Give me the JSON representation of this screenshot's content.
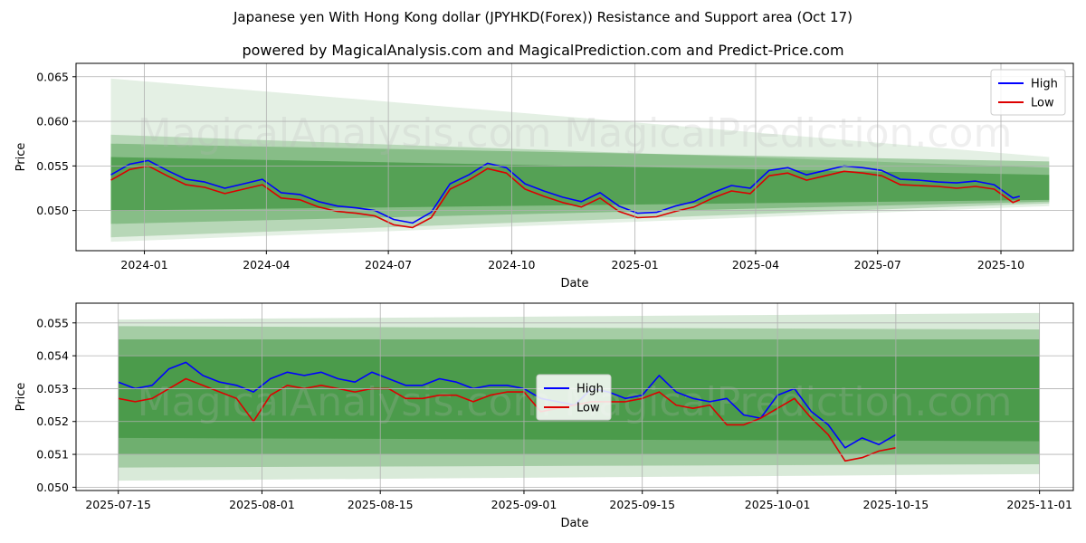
{
  "title": "Japanese yen With Hong Kong dollar (JPYHKD(Forex)) Resistance and Support area (Oct 17)",
  "subtitle": "powered by MagicalAnalysis.com and MagicalPrediction.com and Predict-Price.com",
  "watermark": [
    "MagicalAnalysis.com",
    "MagicalPrediction.com"
  ],
  "colors": {
    "high": "#0000ff",
    "low": "#dd0000",
    "band": "#2e8b2e",
    "grid": "#b0b0b0"
  },
  "chart_data": [
    {
      "type": "line",
      "xlabel": "Date",
      "ylabel": "Price",
      "ylim": [
        0.0455,
        0.0665
      ],
      "x_ticks": [
        "2024-01",
        "2024-04",
        "2024-07",
        "2024-10",
        "2025-01",
        "2025-04",
        "2025-07",
        "2025-10"
      ],
      "y_ticks": [
        "0.050",
        "0.055",
        "0.060",
        "0.065"
      ],
      "legend": {
        "position": "top-right",
        "entries": [
          "High",
          "Low"
        ]
      },
      "grid": true,
      "x": [
        "2023-12-07",
        "2023-12-21",
        "2024-01-04",
        "2024-01-18",
        "2024-02-01",
        "2024-02-15",
        "2024-03-01",
        "2024-03-15",
        "2024-03-29",
        "2024-04-12",
        "2024-04-26",
        "2024-05-10",
        "2024-05-24",
        "2024-06-07",
        "2024-06-21",
        "2024-07-05",
        "2024-07-19",
        "2024-08-02",
        "2024-08-16",
        "2024-08-30",
        "2024-09-13",
        "2024-09-27",
        "2024-10-11",
        "2024-10-25",
        "2024-11-08",
        "2024-11-22",
        "2024-12-06",
        "2024-12-20",
        "2025-01-03",
        "2025-01-17",
        "2025-01-31",
        "2025-02-14",
        "2025-02-28",
        "2025-03-14",
        "2025-03-28",
        "2025-04-11",
        "2025-04-25",
        "2025-05-09",
        "2025-05-23",
        "2025-06-06",
        "2025-06-20",
        "2025-07-04",
        "2025-07-18",
        "2025-08-01",
        "2025-08-15",
        "2025-08-29",
        "2025-09-12",
        "2025-09-26",
        "2025-10-10",
        "2025-10-15"
      ],
      "series": [
        {
          "name": "High",
          "values": [
            0.054,
            0.0552,
            0.0556,
            0.0545,
            0.0535,
            0.0532,
            0.0525,
            0.053,
            0.0535,
            0.052,
            0.0518,
            0.051,
            0.0505,
            0.0503,
            0.05,
            0.049,
            0.0486,
            0.0498,
            0.053,
            0.054,
            0.0553,
            0.0548,
            0.053,
            0.0522,
            0.0515,
            0.051,
            0.052,
            0.0505,
            0.0497,
            0.0498,
            0.0505,
            0.051,
            0.052,
            0.0528,
            0.0525,
            0.0545,
            0.0548,
            0.054,
            0.0545,
            0.055,
            0.0548,
            0.0545,
            0.0535,
            0.0534,
            0.0532,
            0.0531,
            0.0533,
            0.0529,
            0.0514,
            0.0516
          ]
        },
        {
          "name": "Low",
          "values": [
            0.0534,
            0.0546,
            0.055,
            0.0539,
            0.0529,
            0.0526,
            0.0519,
            0.0524,
            0.0529,
            0.0514,
            0.0512,
            0.0504,
            0.0499,
            0.0497,
            0.0494,
            0.0484,
            0.0481,
            0.0492,
            0.0524,
            0.0534,
            0.0547,
            0.0542,
            0.0524,
            0.0516,
            0.0509,
            0.0504,
            0.0514,
            0.0499,
            0.0492,
            0.0493,
            0.0499,
            0.0504,
            0.0514,
            0.0522,
            0.0519,
            0.0539,
            0.0542,
            0.0534,
            0.0539,
            0.0544,
            0.0542,
            0.0539,
            0.0529,
            0.0528,
            0.0527,
            0.0525,
            0.0527,
            0.0524,
            0.0509,
            0.0512
          ]
        }
      ]
    },
    {
      "type": "line",
      "xlabel": "Date",
      "ylabel": "Price",
      "ylim": [
        0.0499,
        0.0556
      ],
      "x_ticks": [
        "2025-07-15",
        "2025-08-01",
        "2025-08-15",
        "2025-09-01",
        "2025-09-15",
        "2025-10-01",
        "2025-10-15",
        "2025-11-01"
      ],
      "y_ticks": [
        "0.050",
        "0.051",
        "0.052",
        "0.053",
        "0.054",
        "0.055"
      ],
      "legend": {
        "position": "center",
        "entries": [
          "High",
          "Low"
        ]
      },
      "grid": true,
      "x": [
        "2025-07-15",
        "2025-07-17",
        "2025-07-19",
        "2025-07-21",
        "2025-07-23",
        "2025-07-25",
        "2025-07-27",
        "2025-07-29",
        "2025-07-31",
        "2025-08-02",
        "2025-08-04",
        "2025-08-06",
        "2025-08-08",
        "2025-08-10",
        "2025-08-12",
        "2025-08-14",
        "2025-08-16",
        "2025-08-18",
        "2025-08-20",
        "2025-08-22",
        "2025-08-24",
        "2025-08-26",
        "2025-08-28",
        "2025-08-30",
        "2025-09-01",
        "2025-09-03",
        "2025-09-05",
        "2025-09-07",
        "2025-09-09",
        "2025-09-11",
        "2025-09-13",
        "2025-09-15",
        "2025-09-17",
        "2025-09-19",
        "2025-09-21",
        "2025-09-23",
        "2025-09-25",
        "2025-09-27",
        "2025-09-29",
        "2025-10-01",
        "2025-10-03",
        "2025-10-05",
        "2025-10-07",
        "2025-10-09",
        "2025-10-11",
        "2025-10-13",
        "2025-10-15"
      ],
      "series": [
        {
          "name": "High",
          "values": [
            0.0532,
            0.053,
            0.0531,
            0.0536,
            0.0538,
            0.0534,
            0.0532,
            0.0531,
            0.0529,
            0.0533,
            0.0535,
            0.0534,
            0.0535,
            0.0533,
            0.0532,
            0.0535,
            0.0533,
            0.0531,
            0.0531,
            0.0533,
            0.0532,
            0.053,
            0.0531,
            0.0531,
            0.053,
            0.0527,
            0.0526,
            0.0525,
            0.053,
            0.0529,
            0.0527,
            0.0528,
            0.0534,
            0.0529,
            0.0527,
            0.0526,
            0.0527,
            0.0522,
            0.0521,
            0.0528,
            0.053,
            0.0523,
            0.0519,
            0.0512,
            0.0515,
            0.0513,
            0.0516
          ]
        },
        {
          "name": "Low",
          "values": [
            0.0527,
            0.0526,
            0.0527,
            0.053,
            0.0533,
            0.0531,
            0.0529,
            0.0527,
            0.052,
            0.0528,
            0.0531,
            0.053,
            0.0531,
            0.053,
            0.0529,
            0.053,
            0.053,
            0.0527,
            0.0527,
            0.0528,
            0.0528,
            0.0526,
            0.0528,
            0.0529,
            0.0529,
            0.0523,
            0.0524,
            0.0525,
            0.0526,
            0.0526,
            0.0526,
            0.0527,
            0.0529,
            0.0525,
            0.0524,
            0.0525,
            0.0519,
            0.0519,
            0.0521,
            0.0524,
            0.0527,
            0.0521,
            0.0516,
            0.0508,
            0.0509,
            0.0511,
            0.0512
          ]
        }
      ]
    }
  ]
}
